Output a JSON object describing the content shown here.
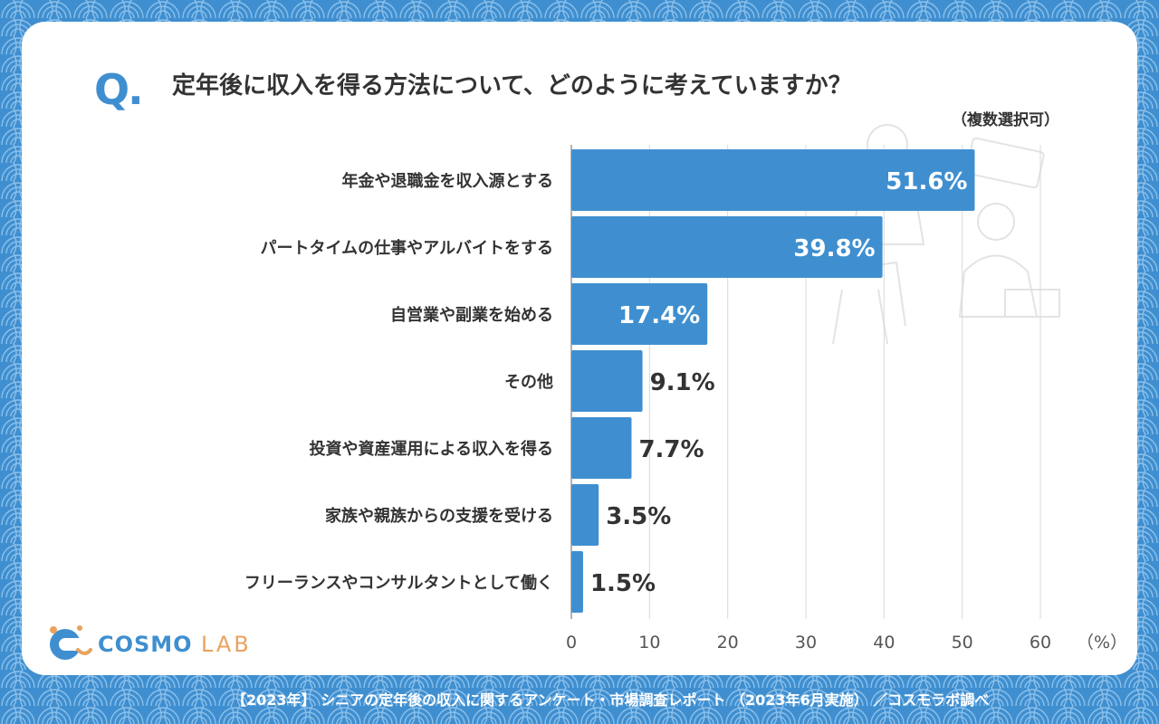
{
  "question": {
    "mark": "Q.",
    "text": "定年後に収入を得る方法について、どのように考えていますか？",
    "note": "（複数選択可）"
  },
  "brand": {
    "logo_main": "COSMO",
    "logo_sub": "LAB"
  },
  "footer": "【2023年】 シニアの定年後の収入に関するアンケート・市場調査レポート （2023年6月実施） ／コスモラボ調べ",
  "colors": {
    "bar": "#3f8fd0",
    "background": "#3f8fd0",
    "card": "#ffffff",
    "text": "#333333",
    "grid": "#d9d9d9",
    "logo_accent": "#e8a25e"
  },
  "chart_data": {
    "type": "bar",
    "orientation": "horizontal",
    "categories": [
      "年金や退職金を収入源とする",
      "パートタイムの仕事やアルバイトをする",
      "自営業や副業を始める",
      "その他",
      "投資や資産運用による収入を得る",
      "家族や親族からの支援を受ける",
      "フリーランスやコンサルタントとして働く"
    ],
    "values": [
      51.6,
      39.8,
      17.4,
      9.1,
      7.7,
      3.5,
      1.5
    ],
    "value_labels": [
      "51.6%",
      "39.8%",
      "17.4%",
      "9.1%",
      "7.7%",
      "3.5%",
      "1.5%"
    ],
    "x_ticks": [
      "0",
      "10",
      "20",
      "30",
      "40",
      "50",
      "60"
    ],
    "x_unit": "（%）",
    "xlim": [
      0,
      60
    ],
    "grid": true
  }
}
